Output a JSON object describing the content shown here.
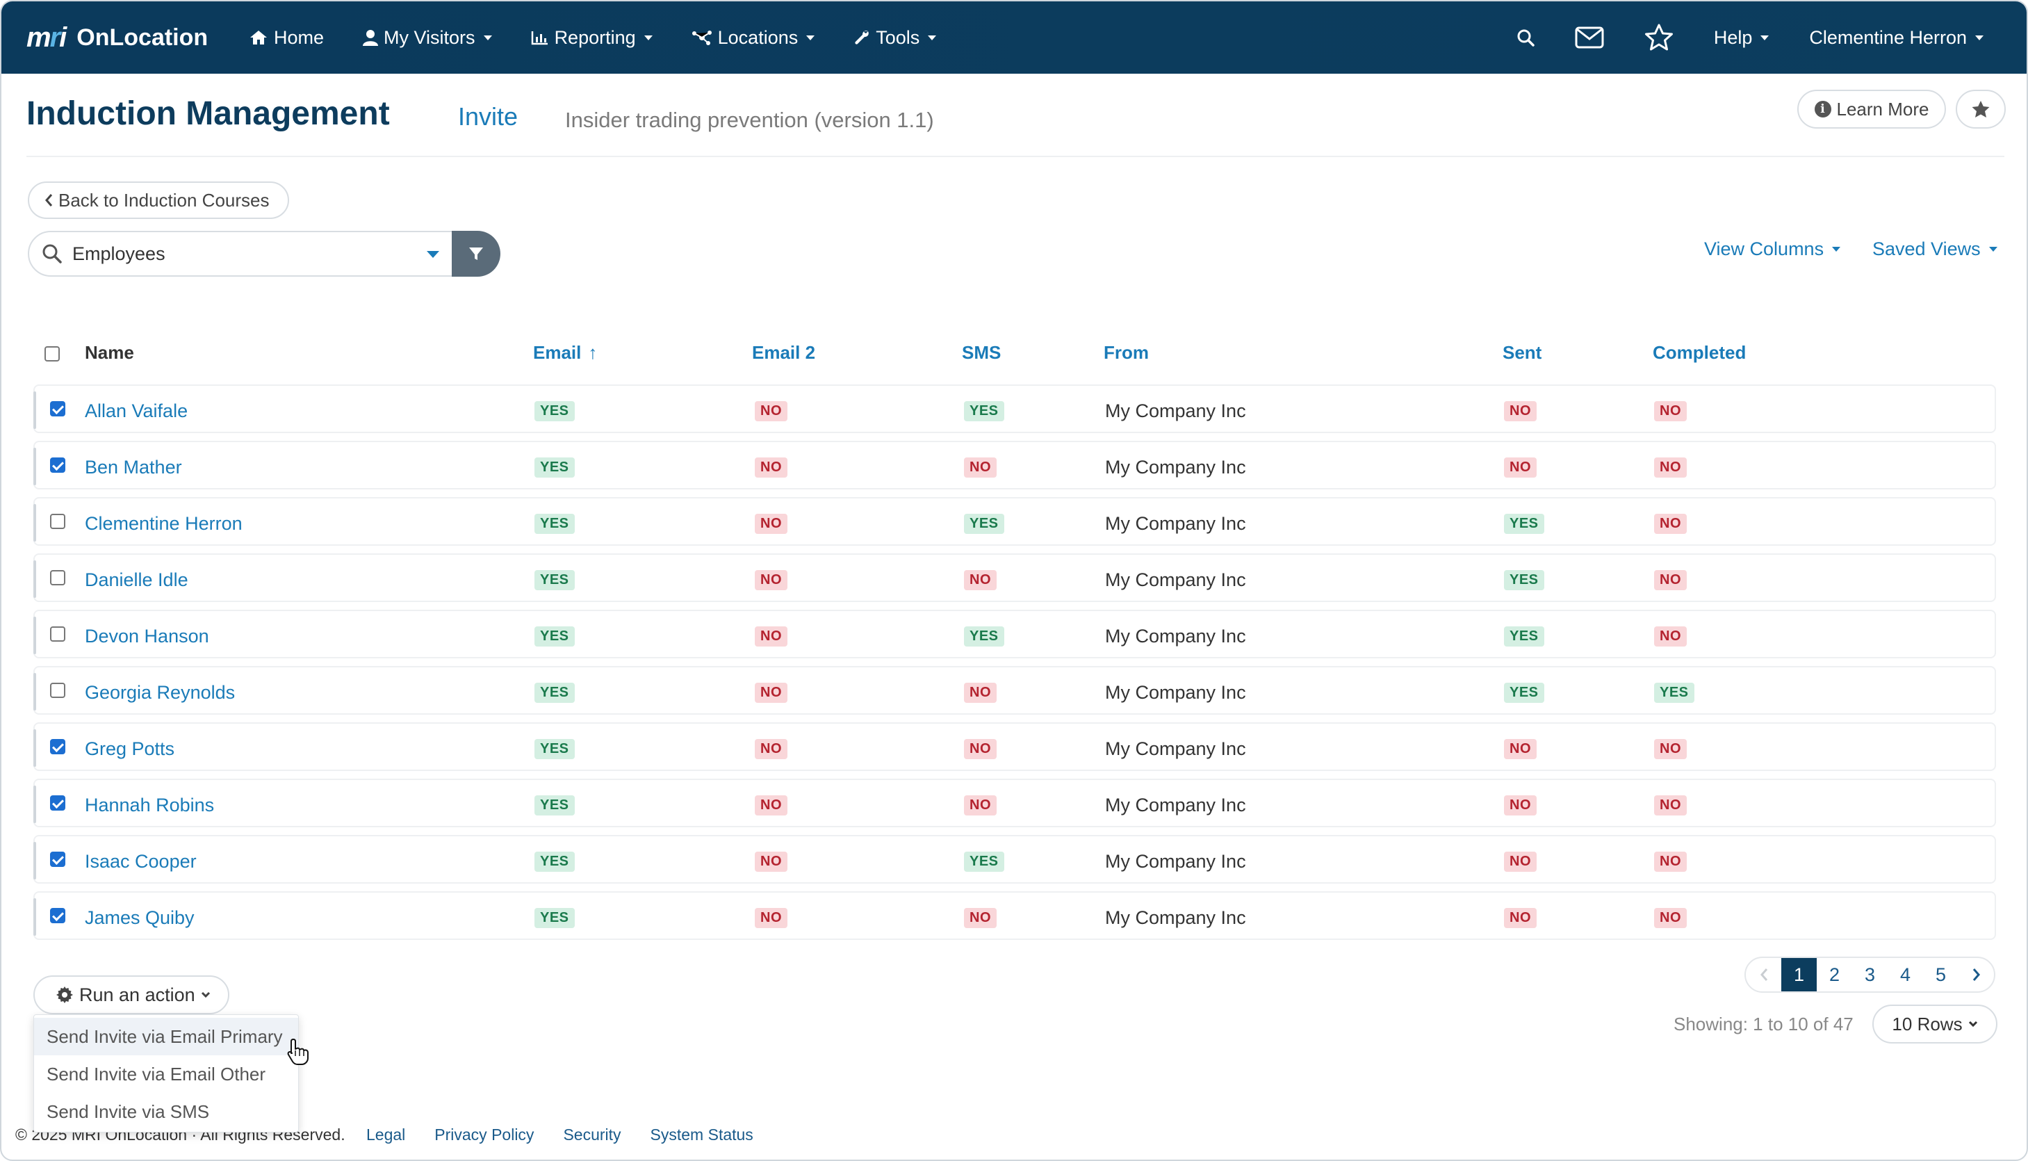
{
  "nav": {
    "brand_mark": "mri",
    "brand_name": "OnLocation",
    "items": [
      "Home",
      "My Visitors",
      "Reporting",
      "Locations",
      "Tools"
    ],
    "help": "Help",
    "user": "Clementine Herron"
  },
  "header": {
    "title": "Induction Management",
    "crumb": "Invite",
    "course": "Insider trading prevention (version 1.1)",
    "learn_more": "Learn More"
  },
  "back_label": "Back to Induction Courses",
  "search": {
    "value": "Employees"
  },
  "view_columns": "View Columns",
  "saved_views": "Saved Views",
  "table": {
    "columns": [
      "Name",
      "Email",
      "Email 2",
      "SMS",
      "From",
      "Sent",
      "Completed"
    ],
    "sort_indicator": "↑",
    "rows": [
      {
        "checked": true,
        "name": "Allan Vaifale",
        "email": "YES",
        "email2": "NO",
        "sms": "YES",
        "from": "My Company Inc",
        "sent": "NO",
        "completed": "NO"
      },
      {
        "checked": true,
        "name": "Ben Mather",
        "email": "YES",
        "email2": "NO",
        "sms": "NO",
        "from": "My Company Inc",
        "sent": "NO",
        "completed": "NO"
      },
      {
        "checked": false,
        "name": "Clementine Herron",
        "email": "YES",
        "email2": "NO",
        "sms": "YES",
        "from": "My Company Inc",
        "sent": "YES",
        "completed": "NO"
      },
      {
        "checked": false,
        "name": "Danielle Idle",
        "email": "YES",
        "email2": "NO",
        "sms": "NO",
        "from": "My Company Inc",
        "sent": "YES",
        "completed": "NO"
      },
      {
        "checked": false,
        "name": "Devon Hanson",
        "email": "YES",
        "email2": "NO",
        "sms": "YES",
        "from": "My Company Inc",
        "sent": "YES",
        "completed": "NO"
      },
      {
        "checked": false,
        "name": "Georgia Reynolds",
        "email": "YES",
        "email2": "NO",
        "sms": "NO",
        "from": "My Company Inc",
        "sent": "YES",
        "completed": "YES"
      },
      {
        "checked": true,
        "name": "Greg Potts",
        "email": "YES",
        "email2": "NO",
        "sms": "NO",
        "from": "My Company Inc",
        "sent": "NO",
        "completed": "NO"
      },
      {
        "checked": true,
        "name": "Hannah Robins",
        "email": "YES",
        "email2": "NO",
        "sms": "NO",
        "from": "My Company Inc",
        "sent": "NO",
        "completed": "NO"
      },
      {
        "checked": true,
        "name": "Isaac Cooper",
        "email": "YES",
        "email2": "NO",
        "sms": "YES",
        "from": "My Company Inc",
        "sent": "NO",
        "completed": "NO"
      },
      {
        "checked": true,
        "name": "James Quiby",
        "email": "YES",
        "email2": "NO",
        "sms": "NO",
        "from": "My Company Inc",
        "sent": "NO",
        "completed": "NO"
      }
    ]
  },
  "action": {
    "label": "Run an action",
    "menu": [
      "Send Invite via Email Primary",
      "Send Invite via Email Other",
      "Send Invite via SMS"
    ]
  },
  "pager": {
    "pages": [
      "1",
      "2",
      "3",
      "4",
      "5"
    ],
    "current": "1"
  },
  "showing": "Showing: 1 to 10 of 47",
  "rows_per_page": "10 Rows",
  "footer": {
    "copyright": "© 2025 MRI OnLocation · All Rights Reserved.",
    "links": [
      "Legal",
      "Privacy Policy",
      "Security",
      "System Status"
    ]
  },
  "colors": {
    "navbar": "#0c3d5e",
    "accent": "#1a7bb8",
    "yes_bg": "#d4efe2",
    "no_bg": "#f9d6d9"
  }
}
